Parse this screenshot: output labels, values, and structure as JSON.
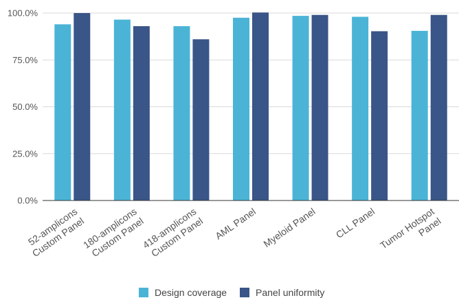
{
  "chart_data": {
    "type": "bar",
    "categories": [
      [
        "52-amplicons",
        "Custom Panel"
      ],
      [
        "180-amplicons",
        "Custom Panel"
      ],
      [
        "418-amplicons",
        "Custom Panel"
      ],
      [
        "AML Panel"
      ],
      [
        "Myeloid Panel"
      ],
      [
        "CLL Panel"
      ],
      [
        "Tumor Hotspot",
        "Panel"
      ]
    ],
    "series": [
      {
        "name": "Design coverage",
        "color": "#4bb4d6",
        "values": [
          94.0,
          96.5,
          93.0,
          97.5,
          98.5,
          98.0,
          90.5
        ]
      },
      {
        "name": "Panel uniformity",
        "color": "#3a5587",
        "values": [
          100.0,
          93.0,
          86.0,
          100.3,
          99.0,
          90.3,
          99.0
        ]
      }
    ],
    "yticks": [
      "0.0%",
      "25.0%",
      "50.0%",
      "75.0%",
      "100.0%"
    ],
    "ylim": [
      0,
      100
    ],
    "grid": true,
    "legend_position": "bottom"
  }
}
